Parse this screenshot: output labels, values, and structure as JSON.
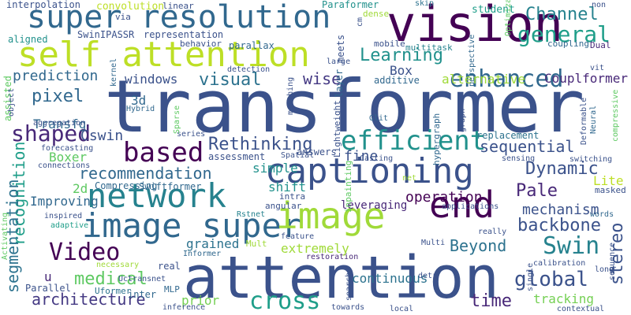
{
  "words": [
    {
      "text": "transformer",
      "color": "#3b528b"
    },
    {
      "text": "attention",
      "color": "#3b528b"
    },
    {
      "text": "vision",
      "color": "#440154"
    },
    {
      "text": "image super",
      "color": "#31688e"
    },
    {
      "text": "super resolution",
      "color": "#31688e"
    },
    {
      "text": "self attention",
      "color": "#bddf26"
    },
    {
      "text": "captioning",
      "color": "#3b528b"
    },
    {
      "text": "image",
      "color": "#a0da39"
    },
    {
      "text": "end",
      "color": "#440154"
    },
    {
      "text": "network",
      "color": "#26828e"
    },
    {
      "text": "based",
      "color": "#440154"
    },
    {
      "text": "efficient",
      "color": "#21918c"
    },
    {
      "text": "general",
      "color": "#1f9e89"
    },
    {
      "text": "enhanced",
      "color": "#31688e"
    },
    {
      "text": "Video",
      "color": "#440154"
    },
    {
      "text": "Swin",
      "color": "#26828e"
    },
    {
      "text": "cross",
      "color": "#1f9e89"
    },
    {
      "text": "Channel",
      "color": "#26828e"
    },
    {
      "text": "global",
      "color": "#3b528b"
    },
    {
      "text": "shaped",
      "color": "#482878"
    },
    {
      "text": "Learning",
      "color": "#21918c"
    },
    {
      "text": "recognition",
      "color": "#1f9e89"
    },
    {
      "text": "segmentation",
      "color": "#2c728e"
    },
    {
      "text": "architecture",
      "color": "#443983"
    },
    {
      "text": "backbone",
      "color": "#3b528b"
    },
    {
      "text": "stereo",
      "color": "#3b528b"
    },
    {
      "text": "sequential",
      "color": "#3b528b"
    },
    {
      "text": "recommendation",
      "color": "#31688e"
    },
    {
      "text": "Rethinking",
      "color": "#3b528b"
    },
    {
      "text": "Dynamic",
      "color": "#3b528b"
    },
    {
      "text": "medical",
      "color": "#5ec962"
    },
    {
      "text": "visual",
      "color": "#2c728e"
    },
    {
      "text": "pixel",
      "color": "#31688e"
    },
    {
      "text": "time",
      "color": "#482878"
    },
    {
      "text": "Pale",
      "color": "#482878"
    },
    {
      "text": "prediction",
      "color": "#31688e"
    },
    {
      "text": "Beyond",
      "color": "#2c728e"
    },
    {
      "text": "mechanism",
      "color": "#3b528b"
    },
    {
      "text": "operation",
      "color": "#440154"
    },
    {
      "text": "wise",
      "color": "#443983"
    },
    {
      "text": "Box",
      "color": "#3b528b"
    },
    {
      "text": "windows",
      "color": "#3b528b"
    },
    {
      "text": "alternative",
      "color": "#a0da39"
    },
    {
      "text": "fine",
      "color": "#3b528b"
    },
    {
      "text": "Cswin",
      "color": "#3b528b"
    },
    {
      "text": "3d",
      "color": "#31688e"
    },
    {
      "text": "Transfg",
      "color": "#31688e"
    },
    {
      "text": "grained",
      "color": "#2c728e"
    },
    {
      "text": "extremely",
      "color": "#a0da39"
    },
    {
      "text": "tracking",
      "color": "#75d054"
    },
    {
      "text": "continuous",
      "color": "#2c728e"
    },
    {
      "text": "prior",
      "color": "#75d054"
    },
    {
      "text": "Improving",
      "color": "#31688e"
    },
    {
      "text": "Boxer",
      "color": "#5ec962"
    },
    {
      "text": "simple",
      "color": "#21918c"
    },
    {
      "text": "shift",
      "color": "#21918c"
    },
    {
      "text": "2d",
      "color": "#5ec962"
    },
    {
      "text": "Lite",
      "color": "#bddf26"
    },
    {
      "text": "leveraging",
      "color": "#482878"
    },
    {
      "text": "Couplformer",
      "color": "#482878"
    },
    {
      "text": "Swiftformer",
      "color": "#31688e"
    },
    {
      "text": "u",
      "color": "#482878"
    },
    {
      "text": "inter",
      "color": "#31688e"
    },
    {
      "text": "real",
      "color": "#3b528b"
    },
    {
      "text": "answers",
      "color": "#3b528b"
    },
    {
      "text": "sequence",
      "color": "#3b528b"
    },
    {
      "text": "replacement",
      "color": "#2c728e"
    },
    {
      "text": "assessment",
      "color": "#3b528b"
    },
    {
      "text": "Parallel",
      "color": "#3b528b"
    },
    {
      "text": "Uformer",
      "color": "#2c728e"
    },
    {
      "text": "MLP",
      "color": "#31688e"
    },
    {
      "text": "convolution",
      "color": "#bddf26"
    },
    {
      "text": "linear",
      "color": "#3b528b"
    },
    {
      "text": "Paraformer",
      "color": "#21918c"
    },
    {
      "text": "dense",
      "color": "#a0da39"
    },
    {
      "text": "skip",
      "color": "#2c728e"
    },
    {
      "text": "student",
      "color": "#1f9e89"
    },
    {
      "text": "interpolation",
      "color": "#3b528b"
    },
    {
      "text": "via",
      "color": "#3b528b"
    },
    {
      "text": "SwinIPASSR",
      "color": "#3b528b"
    },
    {
      "text": "representation",
      "color": "#3b528b"
    },
    {
      "text": "aligned",
      "color": "#21918c"
    },
    {
      "text": "behavior",
      "color": "#3b528b"
    },
    {
      "text": "parallax",
      "color": "#31688e"
    },
    {
      "text": "kernel",
      "color": "#31688e"
    },
    {
      "text": "detection",
      "color": "#3b528b"
    },
    {
      "text": "mobile",
      "color": "#3b528b"
    },
    {
      "text": "multitask",
      "color": "#26828e"
    },
    {
      "text": "coupling",
      "color": "#31688e"
    },
    {
      "text": "Dual",
      "color": "#482878"
    },
    {
      "text": "large",
      "color": "#3b528b"
    },
    {
      "text": "additive",
      "color": "#31688e"
    },
    {
      "text": "vit",
      "color": "#3b528b"
    },
    {
      "text": "Hybrid",
      "color": "#31688e"
    },
    {
      "text": "Glit",
      "color": "#31688e"
    },
    {
      "text": "aggregation",
      "color": "#3b528b"
    },
    {
      "text": "forecasting",
      "color": "#3b528b"
    },
    {
      "text": "series",
      "color": "#3b528b"
    },
    {
      "text": "Spatial",
      "color": "#3b528b"
    },
    {
      "text": "Casting",
      "color": "#3b528b"
    },
    {
      "text": "sensing",
      "color": "#3b528b"
    },
    {
      "text": "switching",
      "color": "#3b528b"
    },
    {
      "text": "connections",
      "color": "#3b528b"
    },
    {
      "text": "Compressing",
      "color": "#31688e"
    },
    {
      "text": "net",
      "color": "#a0da39"
    },
    {
      "text": "applications",
      "color": "#3b528b"
    },
    {
      "text": "masked",
      "color": "#3b528b"
    },
    {
      "text": "angular",
      "color": "#3b528b"
    },
    {
      "text": "inspired",
      "color": "#3b528b"
    },
    {
      "text": "adaptive",
      "color": "#1f9e89"
    },
    {
      "text": "Rstnet",
      "color": "#26828e"
    },
    {
      "text": "words",
      "color": "#31688e"
    },
    {
      "text": "feature",
      "color": "#3b528b"
    },
    {
      "text": "really",
      "color": "#3b528b"
    },
    {
      "text": "Mult",
      "color": "#a0da39"
    },
    {
      "text": "Multi",
      "color": "#3b528b"
    },
    {
      "text": "Informer",
      "color": "#31688e"
    },
    {
      "text": "restoration",
      "color": "#482878"
    },
    {
      "text": "calibration",
      "color": "#3b528b"
    },
    {
      "text": "necessary",
      "color": "#a0da39"
    },
    {
      "text": "Uctransnet",
      "color": "#3b528b"
    },
    {
      "text": "long",
      "color": "#3b528b"
    },
    {
      "text": "detr",
      "color": "#3b528b"
    },
    {
      "text": "inference",
      "color": "#3b528b"
    },
    {
      "text": "towards",
      "color": "#3b528b"
    },
    {
      "text": "local",
      "color": "#3b528b"
    },
    {
      "text": "contextual",
      "color": "#3b528b"
    },
    {
      "text": "single",
      "color": "#3b528b"
    },
    {
      "text": "Optimization",
      "color": "#5ec962"
    },
    {
      "text": "non",
      "color": "#3b528b"
    },
    {
      "text": "perspective",
      "color": "#31688e"
    },
    {
      "text": "layer",
      "color": "#31688e"
    },
    {
      "text": "meets",
      "color": "#3b528b"
    },
    {
      "text": "cm",
      "color": "#3b528b"
    },
    {
      "text": "assisted",
      "color": "#5ec962"
    },
    {
      "text": "object",
      "color": "#3b528b"
    },
    {
      "text": "matching",
      "color": "#3b528b"
    },
    {
      "text": "Lightweight",
      "color": "#3b528b"
    },
    {
      "text": "intra",
      "color": "#3b528b"
    },
    {
      "text": "inpainting",
      "color": "#5ec962"
    },
    {
      "text": "hypergraph",
      "color": "#31688e"
    },
    {
      "text": "graph",
      "color": "#3b528b"
    },
    {
      "text": "Sparse",
      "color": "#5ec962"
    },
    {
      "text": "Deformable",
      "color": "#3b528b"
    },
    {
      "text": "Neural",
      "color": "#31688e"
    },
    {
      "text": "compressive",
      "color": "#5ec962"
    },
    {
      "text": "Activating",
      "color": "#5ec962"
    },
    {
      "text": "search",
      "color": "#3b528b"
    }
  ]
}
